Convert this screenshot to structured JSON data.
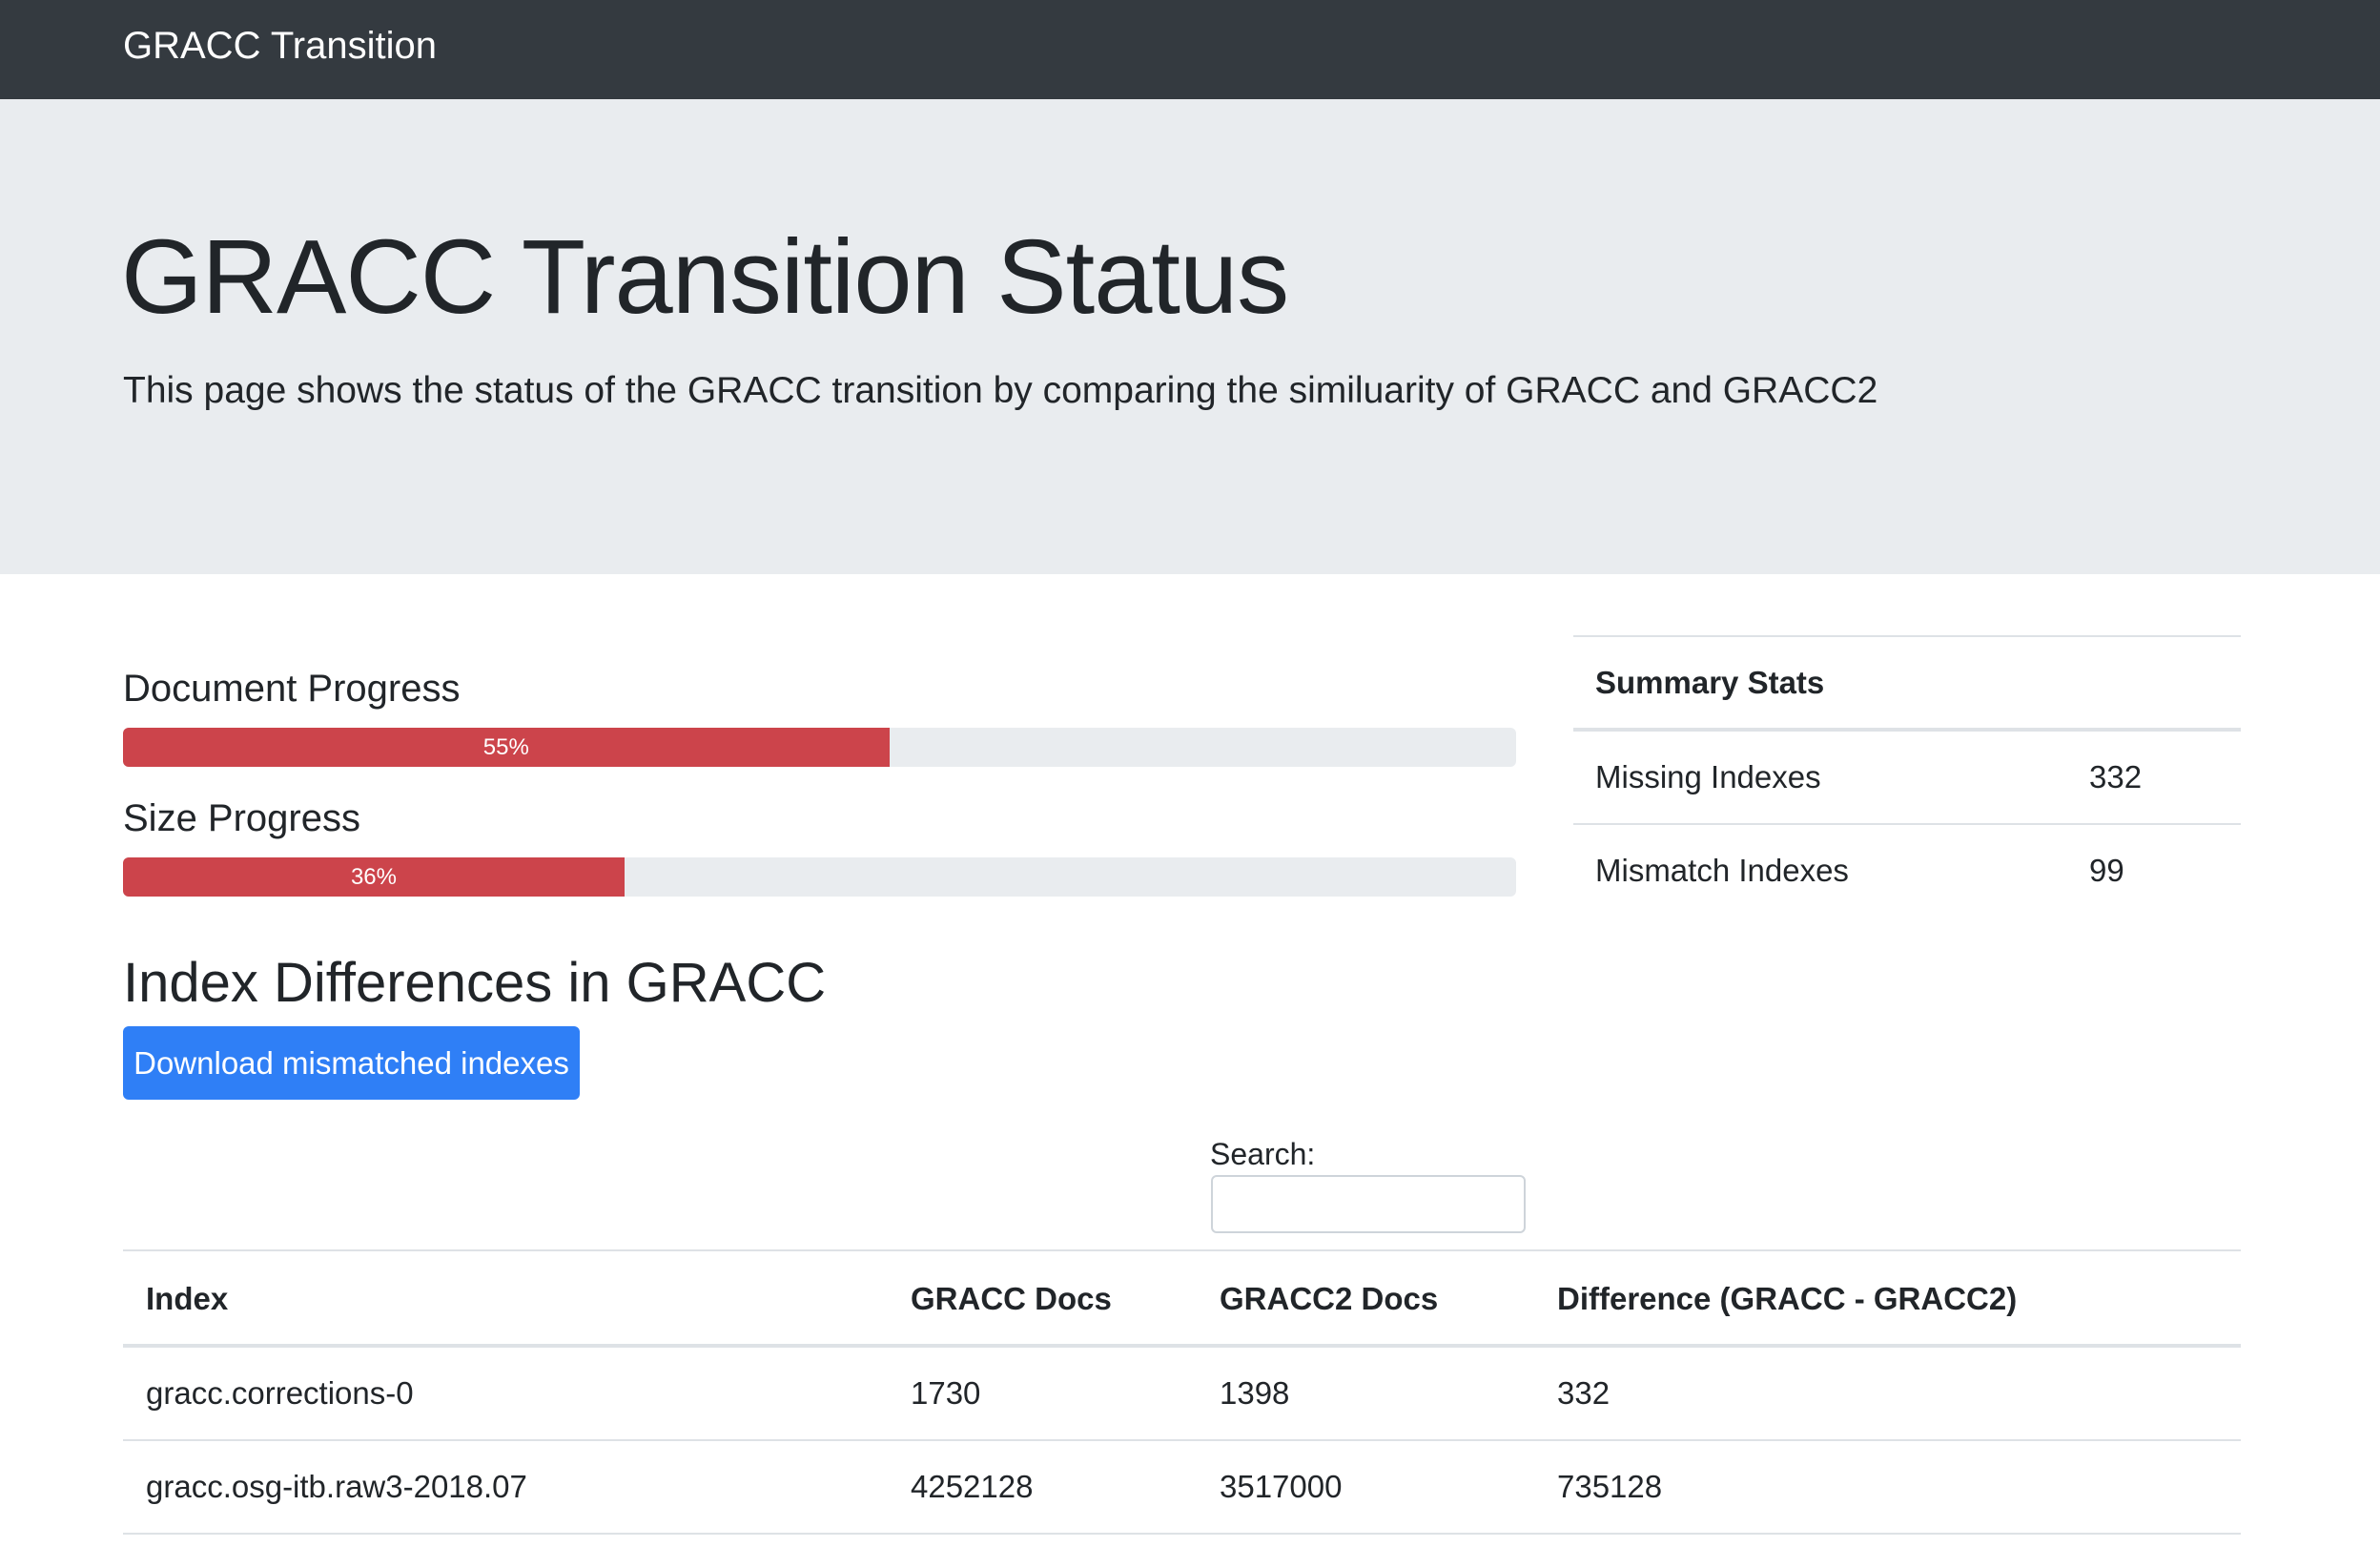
{
  "navbar": {
    "brand": "GRACC Transition"
  },
  "jumbotron": {
    "title": "GRACC Transition Status",
    "lead": "This page shows the status of the GRACC transition by comparing the similuarity of GRACC and GRACC2"
  },
  "progress": {
    "document": {
      "label": "Document Progress",
      "percent": 55,
      "text": "55%"
    },
    "size": {
      "label": "Size Progress",
      "percent": 36,
      "text": "36%"
    },
    "fill_color": "#cc444b"
  },
  "summary": {
    "header": "Summary Stats",
    "rows": [
      {
        "label": "Missing Indexes",
        "value": "332"
      },
      {
        "label": "Mismatch Indexes",
        "value": "99"
      }
    ]
  },
  "differences": {
    "title": "Index Differences in GRACC",
    "download_label": "Download mismatched indexes",
    "search_label": "Search:",
    "search_value": "",
    "columns": [
      "Index",
      "GRACC Docs",
      "GRACC2 Docs",
      "Difference (GRACC - GRACC2)"
    ],
    "rows": [
      [
        "gracc.corrections-0",
        "1730",
        "1398",
        "332"
      ],
      [
        "gracc.osg-itb.raw3-2018.07",
        "4252128",
        "3517000",
        "735128"
      ]
    ]
  },
  "colors": {
    "navbar": "#343a40",
    "jumbotron": "#e9ecef",
    "primary_button": "#2f7ff6"
  }
}
